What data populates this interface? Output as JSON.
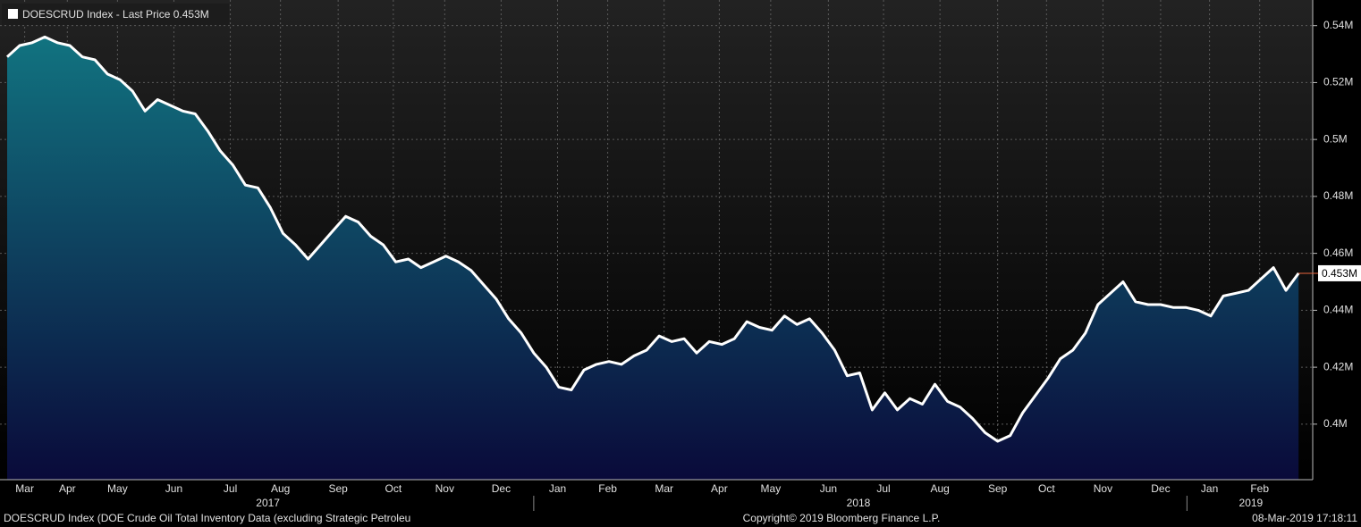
{
  "chart_data": {
    "type": "area",
    "series": [
      {
        "name": "DOESCRUD Index - Last Price",
        "color": "#ffffff",
        "values": [
          0.529,
          0.533,
          0.534,
          0.536,
          0.534,
          0.533,
          0.529,
          0.528,
          0.523,
          0.521,
          0.517,
          0.51,
          0.514,
          0.512,
          0.51,
          0.509,
          0.503,
          0.496,
          0.491,
          0.484,
          0.483,
          0.476,
          0.467,
          0.463,
          0.458,
          0.463,
          0.468,
          0.473,
          0.471,
          0.466,
          0.463,
          0.457,
          0.458,
          0.455,
          0.457,
          0.459,
          0.457,
          0.454,
          0.449,
          0.444,
          0.437,
          0.432,
          0.425,
          0.42,
          0.413,
          0.412,
          0.419,
          0.421,
          0.422,
          0.421,
          0.424,
          0.426,
          0.431,
          0.429,
          0.43,
          0.425,
          0.429,
          0.428,
          0.43,
          0.436,
          0.434,
          0.433,
          0.438,
          0.435,
          0.437,
          0.432,
          0.426,
          0.417,
          0.418,
          0.405,
          0.411,
          0.405,
          0.409,
          0.407,
          0.414,
          0.408,
          0.406,
          0.402,
          0.397,
          0.394,
          0.396,
          0.404,
          0.41,
          0.416,
          0.423,
          0.426,
          0.432,
          0.442,
          0.446,
          0.45,
          0.443,
          0.442,
          0.442,
          0.441,
          0.441,
          0.44,
          0.438,
          0.445,
          0.446,
          0.447,
          0.451,
          0.455,
          0.447,
          0.453
        ]
      }
    ],
    "last_value_label": "0.453M",
    "area_colors": [
      "#127c86",
      "#0a0a3a"
    ],
    "marker_color": "#e8643c",
    "xlim": [
      -0.57,
      104.13
    ],
    "xticks": [
      {
        "value": 1.4,
        "label": "Mar"
      },
      {
        "value": 4.8,
        "label": "Apr"
      },
      {
        "value": 8.8,
        "label": "May"
      },
      {
        "value": 13.3,
        "label": "Jun"
      },
      {
        "value": 17.8,
        "label": "Jul"
      },
      {
        "value": 21.8,
        "label": "Aug"
      },
      {
        "value": 26.4,
        "label": "Sep"
      },
      {
        "value": 30.8,
        "label": "Oct"
      },
      {
        "value": 34.9,
        "label": "Nov"
      },
      {
        "value": 39.4,
        "label": "Dec"
      },
      {
        "value": 43.9,
        "label": "Jan"
      },
      {
        "value": 47.9,
        "label": "Feb"
      },
      {
        "value": 52.4,
        "label": "Mar"
      },
      {
        "value": 56.8,
        "label": "Apr"
      },
      {
        "value": 60.9,
        "label": "May"
      },
      {
        "value": 65.5,
        "label": "Jun"
      },
      {
        "value": 69.9,
        "label": "Jul"
      },
      {
        "value": 74.4,
        "label": "Aug"
      },
      {
        "value": 79.0,
        "label": "Sep"
      },
      {
        "value": 82.9,
        "label": "Oct"
      },
      {
        "value": 87.4,
        "label": "Nov"
      },
      {
        "value": 92.0,
        "label": "Dec"
      },
      {
        "value": 95.9,
        "label": "Jan"
      },
      {
        "value": 99.9,
        "label": "Feb"
      }
    ],
    "year_ticks": [
      {
        "value": 20.8,
        "label": "2017"
      },
      {
        "value": 67.9,
        "label": "2018"
      },
      {
        "value": 99.2,
        "label": "2019"
      }
    ],
    "year_breaks": [
      42.0,
      94.1
    ],
    "ylim": [
      0.3805,
      0.549
    ],
    "yticks": [
      {
        "value": 0.4,
        "label": "0.4M"
      },
      {
        "value": 0.42,
        "label": "0.42M"
      },
      {
        "value": 0.44,
        "label": "0.44M"
      },
      {
        "value": 0.46,
        "label": "0.46M"
      },
      {
        "value": 0.48,
        "label": "0.48M"
      },
      {
        "value": 0.5,
        "label": "0.5M"
      },
      {
        "value": 0.52,
        "label": "0.52M"
      },
      {
        "value": 0.54,
        "label": "0.54M"
      }
    ],
    "grid": true,
    "footer": {
      "description": "DOESCRUD Index (DOE Crude Oil Total Inventory Data (excluding Strategic Petroleu",
      "copyright": "Copyright© 2019 Bloomberg Finance L.P.",
      "timestamp": "08-Mar-2019 17:18:11"
    }
  }
}
